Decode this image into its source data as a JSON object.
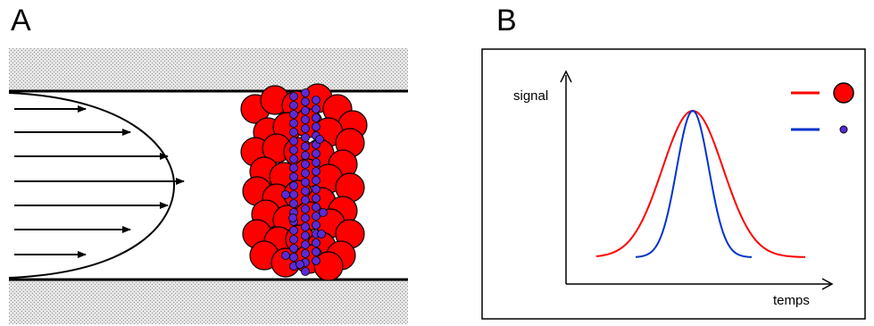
{
  "panels": {
    "a": {
      "letter": "A"
    },
    "b": {
      "letter": "B",
      "ylabel": "signal",
      "xlabel": "temps",
      "legend": [
        {
          "color": "#ff0000",
          "marker": "large-red-particle"
        },
        {
          "color": "#0033cc",
          "marker": "small-purple-particle"
        }
      ]
    }
  },
  "colors": {
    "red_particle": "#ff0000",
    "small_particle": "#5a2bd6",
    "wall_hatch": "#d9d9d9",
    "red_curve": "#ff0000",
    "blue_curve": "#0033cc"
  }
}
